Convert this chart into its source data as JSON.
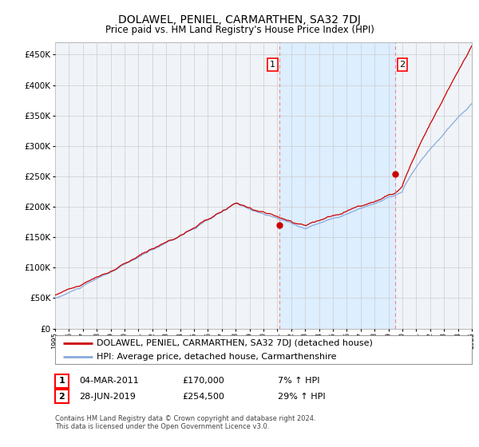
{
  "title": "DOLAWEL, PENIEL, CARMARTHEN, SA32 7DJ",
  "subtitle": "Price paid vs. HM Land Registry's House Price Index (HPI)",
  "ylabel_ticks": [
    "£0",
    "£50K",
    "£100K",
    "£150K",
    "£200K",
    "£250K",
    "£300K",
    "£350K",
    "£400K",
    "£450K"
  ],
  "ytick_values": [
    0,
    50000,
    100000,
    150000,
    200000,
    250000,
    300000,
    350000,
    400000,
    450000
  ],
  "ylim": [
    0,
    470000
  ],
  "xlim_left": 1995.0,
  "xlim_right": 2025.0,
  "vline1_x": 2011.17,
  "vline2_x": 2019.49,
  "point1_x": 2011.17,
  "point1_y": 170000,
  "point2_x": 2019.49,
  "point2_y": 254500,
  "label1": "1",
  "label2": "2",
  "shade_color": "#ddeeff",
  "annotation1": {
    "date": "04-MAR-2011",
    "price": "£170,000",
    "hpi": "7% ↑ HPI"
  },
  "annotation2": {
    "date": "28-JUN-2019",
    "price": "£254,500",
    "hpi": "29% ↑ HPI"
  },
  "legend1_label": "DOLAWEL, PENIEL, CARMARTHEN, SA32 7DJ (detached house)",
  "legend2_label": "HPI: Average price, detached house, Carmarthenshire",
  "line1_color": "#cc0000",
  "line2_color": "#88aadd",
  "vline_color": "#ee8888",
  "point_color": "#cc0000",
  "footnote": "Contains HM Land Registry data © Crown copyright and database right 2024.\nThis data is licensed under the Open Government Licence v3.0.",
  "bg_color": "#f0f4f8",
  "grid_color": "#cccccc",
  "title_fontsize": 10,
  "subtitle_fontsize": 8.5,
  "tick_fontsize": 7.5,
  "legend_fontsize": 8,
  "annot_fontsize": 8
}
